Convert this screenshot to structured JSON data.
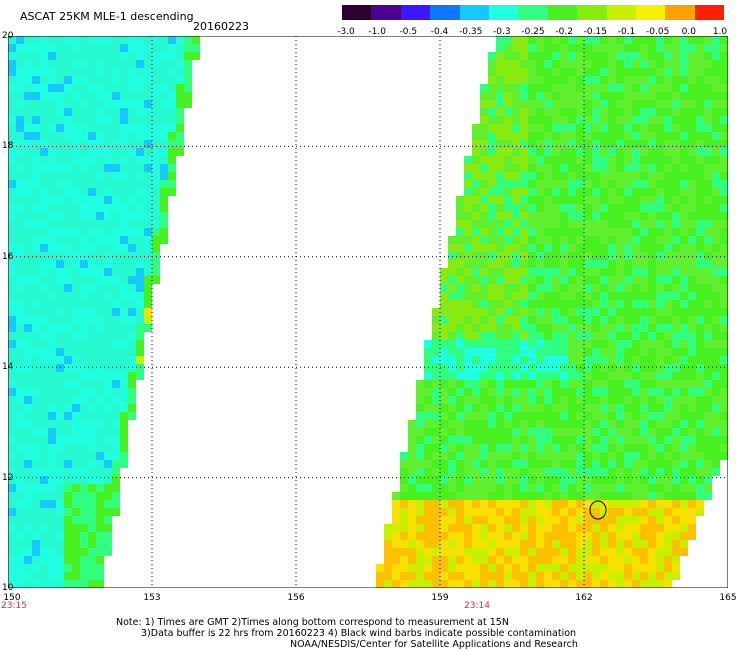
{
  "title": "ASCAT 25KM MLE-1 descending",
  "date": "20160223",
  "colorbar": {
    "labels": [
      "-3.0",
      "-1.0",
      "-0.5",
      "-0.4",
      "-0.35",
      "-0.3",
      "-0.25",
      "-0.2",
      "-0.15",
      "-0.1",
      "-0.05",
      "0.0",
      "1.0"
    ],
    "colors": [
      "#2a0030",
      "#4a0090",
      "#3a18ff",
      "#0a78ff",
      "#16c8ff",
      "#20ffe0",
      "#30ff80",
      "#48f020",
      "#88ec10",
      "#c8f000",
      "#f8f000",
      "#ffa000",
      "#ff2000"
    ]
  },
  "map": {
    "lat_labels": [
      "20",
      "18",
      "16",
      "14",
      "12",
      "10"
    ],
    "lon_labels": [
      "150",
      "153",
      "156",
      "159",
      "162",
      "165"
    ],
    "pass_times": [
      "23:15",
      "23:14"
    ],
    "lat_range": [
      10,
      20
    ],
    "lon_range": [
      150,
      165
    ]
  },
  "notes": [
    "Note: 1) Times are GMT 2)Times along bottom correspond to measurement at 15N",
    "3)Data buffer is 22 hrs from 20160223 4) Black wind barbs indicate possible contamination",
    "NOAA/NESDIS/Center for Satellite Applications and Research"
  ]
}
